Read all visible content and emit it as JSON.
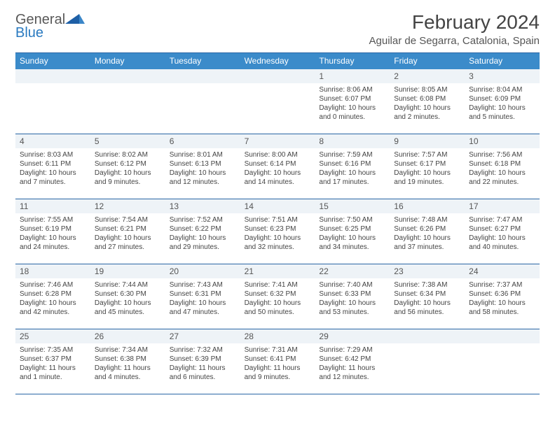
{
  "brand": {
    "word1": "General",
    "word2": "Blue",
    "color1": "#585858",
    "color2": "#2a7ac0",
    "tri_color": "#1e5fa6"
  },
  "title": "February 2024",
  "location": "Aguilar de Segarra, Catalonia, Spain",
  "header_bg": "#3b8bca",
  "rule_color": "#2a66a5",
  "daynum_bg": "#eef3f7",
  "day_names": [
    "Sunday",
    "Monday",
    "Tuesday",
    "Wednesday",
    "Thursday",
    "Friday",
    "Saturday"
  ],
  "weeks": [
    [
      null,
      null,
      null,
      null,
      {
        "n": "1",
        "sr": "Sunrise: 8:06 AM",
        "ss": "Sunset: 6:07 PM",
        "dl": "Daylight: 10 hours and 0 minutes."
      },
      {
        "n": "2",
        "sr": "Sunrise: 8:05 AM",
        "ss": "Sunset: 6:08 PM",
        "dl": "Daylight: 10 hours and 2 minutes."
      },
      {
        "n": "3",
        "sr": "Sunrise: 8:04 AM",
        "ss": "Sunset: 6:09 PM",
        "dl": "Daylight: 10 hours and 5 minutes."
      }
    ],
    [
      {
        "n": "4",
        "sr": "Sunrise: 8:03 AM",
        "ss": "Sunset: 6:11 PM",
        "dl": "Daylight: 10 hours and 7 minutes."
      },
      {
        "n": "5",
        "sr": "Sunrise: 8:02 AM",
        "ss": "Sunset: 6:12 PM",
        "dl": "Daylight: 10 hours and 9 minutes."
      },
      {
        "n": "6",
        "sr": "Sunrise: 8:01 AM",
        "ss": "Sunset: 6:13 PM",
        "dl": "Daylight: 10 hours and 12 minutes."
      },
      {
        "n": "7",
        "sr": "Sunrise: 8:00 AM",
        "ss": "Sunset: 6:14 PM",
        "dl": "Daylight: 10 hours and 14 minutes."
      },
      {
        "n": "8",
        "sr": "Sunrise: 7:59 AM",
        "ss": "Sunset: 6:16 PM",
        "dl": "Daylight: 10 hours and 17 minutes."
      },
      {
        "n": "9",
        "sr": "Sunrise: 7:57 AM",
        "ss": "Sunset: 6:17 PM",
        "dl": "Daylight: 10 hours and 19 minutes."
      },
      {
        "n": "10",
        "sr": "Sunrise: 7:56 AM",
        "ss": "Sunset: 6:18 PM",
        "dl": "Daylight: 10 hours and 22 minutes."
      }
    ],
    [
      {
        "n": "11",
        "sr": "Sunrise: 7:55 AM",
        "ss": "Sunset: 6:19 PM",
        "dl": "Daylight: 10 hours and 24 minutes."
      },
      {
        "n": "12",
        "sr": "Sunrise: 7:54 AM",
        "ss": "Sunset: 6:21 PM",
        "dl": "Daylight: 10 hours and 27 minutes."
      },
      {
        "n": "13",
        "sr": "Sunrise: 7:52 AM",
        "ss": "Sunset: 6:22 PM",
        "dl": "Daylight: 10 hours and 29 minutes."
      },
      {
        "n": "14",
        "sr": "Sunrise: 7:51 AM",
        "ss": "Sunset: 6:23 PM",
        "dl": "Daylight: 10 hours and 32 minutes."
      },
      {
        "n": "15",
        "sr": "Sunrise: 7:50 AM",
        "ss": "Sunset: 6:25 PM",
        "dl": "Daylight: 10 hours and 34 minutes."
      },
      {
        "n": "16",
        "sr": "Sunrise: 7:48 AM",
        "ss": "Sunset: 6:26 PM",
        "dl": "Daylight: 10 hours and 37 minutes."
      },
      {
        "n": "17",
        "sr": "Sunrise: 7:47 AM",
        "ss": "Sunset: 6:27 PM",
        "dl": "Daylight: 10 hours and 40 minutes."
      }
    ],
    [
      {
        "n": "18",
        "sr": "Sunrise: 7:46 AM",
        "ss": "Sunset: 6:28 PM",
        "dl": "Daylight: 10 hours and 42 minutes."
      },
      {
        "n": "19",
        "sr": "Sunrise: 7:44 AM",
        "ss": "Sunset: 6:30 PM",
        "dl": "Daylight: 10 hours and 45 minutes."
      },
      {
        "n": "20",
        "sr": "Sunrise: 7:43 AM",
        "ss": "Sunset: 6:31 PM",
        "dl": "Daylight: 10 hours and 47 minutes."
      },
      {
        "n": "21",
        "sr": "Sunrise: 7:41 AM",
        "ss": "Sunset: 6:32 PM",
        "dl": "Daylight: 10 hours and 50 minutes."
      },
      {
        "n": "22",
        "sr": "Sunrise: 7:40 AM",
        "ss": "Sunset: 6:33 PM",
        "dl": "Daylight: 10 hours and 53 minutes."
      },
      {
        "n": "23",
        "sr": "Sunrise: 7:38 AM",
        "ss": "Sunset: 6:34 PM",
        "dl": "Daylight: 10 hours and 56 minutes."
      },
      {
        "n": "24",
        "sr": "Sunrise: 7:37 AM",
        "ss": "Sunset: 6:36 PM",
        "dl": "Daylight: 10 hours and 58 minutes."
      }
    ],
    [
      {
        "n": "25",
        "sr": "Sunrise: 7:35 AM",
        "ss": "Sunset: 6:37 PM",
        "dl": "Daylight: 11 hours and 1 minute."
      },
      {
        "n": "26",
        "sr": "Sunrise: 7:34 AM",
        "ss": "Sunset: 6:38 PM",
        "dl": "Daylight: 11 hours and 4 minutes."
      },
      {
        "n": "27",
        "sr": "Sunrise: 7:32 AM",
        "ss": "Sunset: 6:39 PM",
        "dl": "Daylight: 11 hours and 6 minutes."
      },
      {
        "n": "28",
        "sr": "Sunrise: 7:31 AM",
        "ss": "Sunset: 6:41 PM",
        "dl": "Daylight: 11 hours and 9 minutes."
      },
      {
        "n": "29",
        "sr": "Sunrise: 7:29 AM",
        "ss": "Sunset: 6:42 PM",
        "dl": "Daylight: 11 hours and 12 minutes."
      },
      null,
      null
    ]
  ]
}
